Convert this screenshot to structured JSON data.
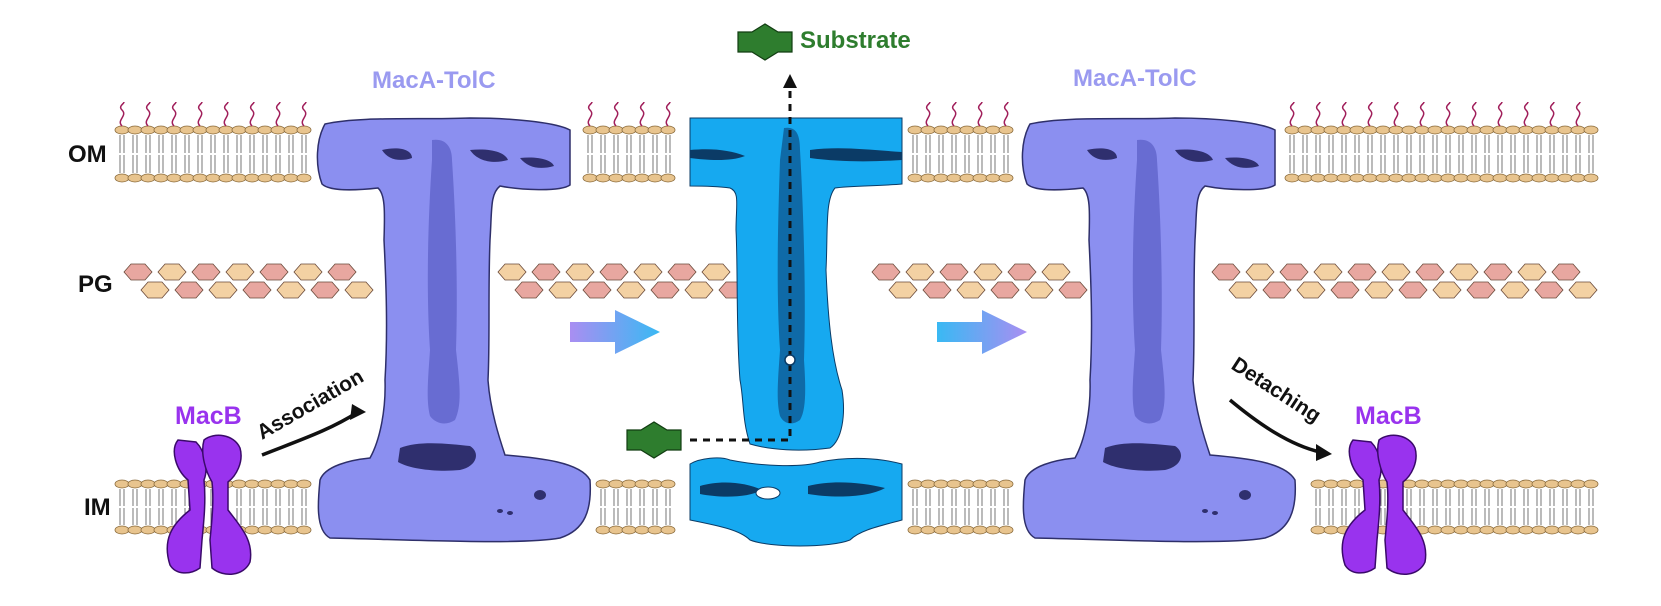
{
  "labels": {
    "om": "OM",
    "pg": "PG",
    "im": "IM",
    "mac_a_tolc_left": "MacA-TolC",
    "mac_a_tolc_right": "MacA-TolC",
    "macb_left": "MacB",
    "macb_right": "MacB",
    "substrate": "Substrate",
    "association": "Association",
    "detaching": "Detaching"
  },
  "colors": {
    "complex": "#8b8ff0",
    "complex_dark": "#3e3f86",
    "active_channel": "#16a9f0",
    "active_dark": "#0b3b66",
    "macb": "#9933ee",
    "substrate": "#2e7d2e",
    "mac_label": "#9a9af0",
    "lps": "#a01e5a",
    "lipid_head": "#e8c48e",
    "pg_red": "#e8a7a0",
    "pg_tan": "#f3d1a3"
  },
  "icons": {
    "substrate": "substrate-hexagon-icon",
    "arrows": "gradient-block-arrow-icon"
  }
}
